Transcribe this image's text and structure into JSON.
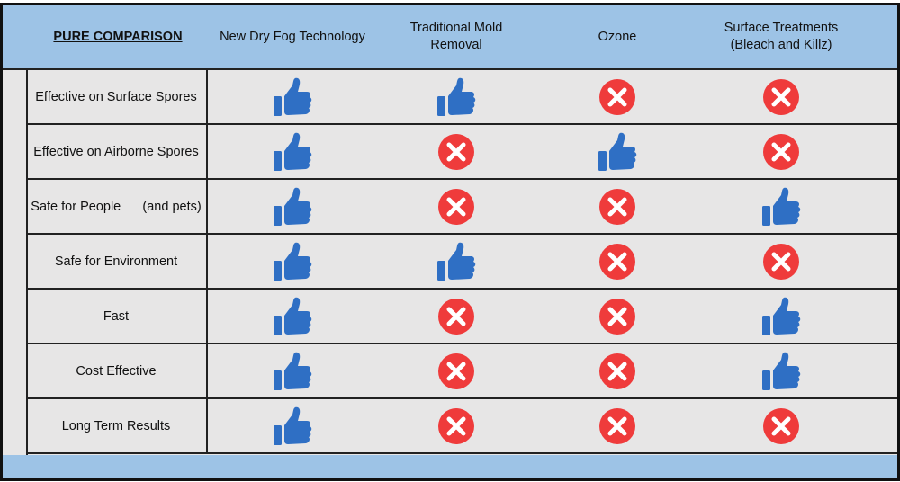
{
  "header": {
    "title": "PURE COMPARISON",
    "columns": [
      "New Dry Fog Technology",
      "Traditional Mold Removal",
      "Ozone",
      "Surface Treatments (Bleach and Killz)"
    ]
  },
  "rows": [
    {
      "label": "Effective on Surface Spores",
      "values": [
        "yes",
        "yes",
        "no",
        "no"
      ]
    },
    {
      "label": "Effective on Airborne Spores",
      "values": [
        "yes",
        "no",
        "yes",
        "no"
      ]
    },
    {
      "label": "Safe for People      (and pets)",
      "values": [
        "yes",
        "no",
        "no",
        "yes"
      ]
    },
    {
      "label": "Safe for Environment",
      "values": [
        "yes",
        "yes",
        "no",
        "no"
      ]
    },
    {
      "label": "Fast",
      "values": [
        "yes",
        "no",
        "no",
        "yes"
      ]
    },
    {
      "label": "Cost Effective",
      "values": [
        "yes",
        "no",
        "no",
        "yes"
      ]
    },
    {
      "label": "Long Term Results",
      "values": [
        "yes",
        "no",
        "no",
        "no"
      ]
    }
  ],
  "icons": {
    "yes": "thumbs-up-icon",
    "no": "x-circle-icon"
  },
  "colors": {
    "header": "#9dc3e6",
    "thumb": "#2f6fc4",
    "x": "#ef3b3b",
    "cell": "#e7e6e6"
  }
}
